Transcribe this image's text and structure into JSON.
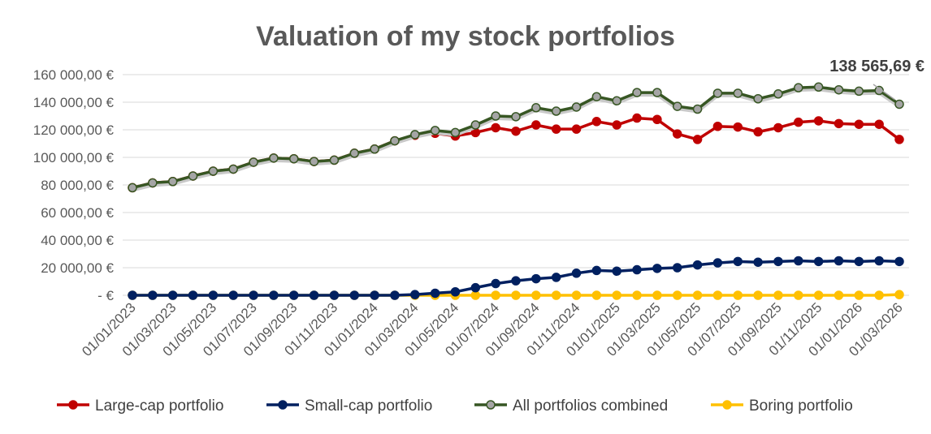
{
  "chart_data": {
    "type": "line",
    "title": "Valuation of my stock portfolios",
    "xlabel": "",
    "ylabel": "",
    "ylim": [
      0,
      160000
    ],
    "yticks": [
      0,
      20000,
      40000,
      60000,
      80000,
      100000,
      120000,
      140000,
      160000
    ],
    "ytick_labels": [
      "-  €",
      "20 000,00 €",
      "40 000,00 €",
      "60 000,00 €",
      "80 000,00 €",
      "100 000,00 €",
      "120 000,00 €",
      "140 000,00 €",
      "160 000,00 €"
    ],
    "grid": true,
    "legend_position": "bottom",
    "x": [
      "01/01/2023",
      "01/02/2023",
      "01/03/2023",
      "01/04/2023",
      "01/05/2023",
      "01/06/2023",
      "01/07/2023",
      "01/08/2023",
      "01/09/2023",
      "01/10/2023",
      "01/11/2023",
      "01/12/2023",
      "01/01/2024",
      "01/02/2024",
      "01/03/2024",
      "01/04/2024",
      "01/05/2024",
      "01/06/2024",
      "01/07/2024",
      "01/08/2024",
      "01/09/2024",
      "01/10/2024",
      "01/11/2024",
      "01/12/2024",
      "01/01/2025",
      "01/02/2025",
      "01/03/2025",
      "01/04/2025",
      "01/05/2025",
      "01/06/2025",
      "01/07/2025",
      "01/08/2025",
      "01/09/2025",
      "01/10/2025",
      "01/11/2025",
      "01/12/2025",
      "01/01/2026",
      "01/02/2026",
      "01/03/2026"
    ],
    "x_tick_labels": [
      "01/01/2023",
      "01/03/2023",
      "01/05/2023",
      "01/07/2023",
      "01/09/2023",
      "01/11/2023",
      "01/01/2024",
      "01/03/2024",
      "01/05/2024",
      "01/07/2024",
      "01/09/2024",
      "01/11/2024",
      "01/01/2025",
      "01/03/2025",
      "01/05/2025",
      "01/07/2025",
      "01/09/2025",
      "01/11/2025",
      "01/01/2026",
      "01/03/2026"
    ],
    "series": [
      {
        "name": "Large-cap portfolio",
        "color": "#c00000",
        "values": [
          78000,
          81500,
          82500,
          86500,
          90000,
          91500,
          96500,
          99500,
          99000,
          97000,
          98000,
          103000,
          106000,
          112000,
          116000,
          117500,
          115500,
          118000,
          121500,
          119000,
          123500,
          120500,
          120500,
          126000,
          123500,
          128500,
          127500,
          117000,
          113000,
          122500,
          122000,
          118500,
          121500,
          125500,
          126500,
          124500,
          124000,
          124000,
          113000
        ]
      },
      {
        "name": "Small-cap portfolio",
        "color": "#002060",
        "values": [
          0,
          0,
          0,
          0,
          0,
          0,
          0,
          0,
          0,
          0,
          0,
          0,
          0,
          0,
          500,
          1500,
          2500,
          5500,
          8500,
          10500,
          12000,
          13000,
          16000,
          18000,
          17500,
          18500,
          19500,
          20000,
          22000,
          23500,
          24500,
          24000,
          24500,
          25000,
          24500,
          25000,
          24500,
          25000,
          24500
        ]
      },
      {
        "name": "All portfolios combined",
        "color": "#375623",
        "marker_fill": "#a5a5a5",
        "values": [
          78000,
          81500,
          82500,
          86500,
          90000,
          91500,
          96500,
          99500,
          99000,
          97000,
          98000,
          103000,
          106000,
          112000,
          116500,
          119500,
          118000,
          123500,
          130000,
          129500,
          136000,
          133500,
          136500,
          144000,
          141000,
          147000,
          147000,
          137000,
          135000,
          146500,
          146500,
          142500,
          146000,
          150500,
          151000,
          149000,
          148000,
          148500,
          138565.69
        ]
      },
      {
        "name": "Boring portfolio",
        "color": "#ffc000",
        "values": [
          0,
          0,
          0,
          0,
          0,
          0,
          0,
          0,
          0,
          0,
          0,
          0,
          0,
          0,
          0,
          0,
          0,
          0,
          0,
          0,
          0,
          0,
          0,
          0,
          0,
          0,
          0,
          0,
          0,
          0,
          0,
          0,
          0,
          0,
          0,
          0,
          0,
          0,
          500
        ]
      }
    ],
    "annotation": {
      "text": "138 565,69 €",
      "series": "All portfolios combined",
      "x": "01/03/2026",
      "value": 138565.69
    }
  }
}
